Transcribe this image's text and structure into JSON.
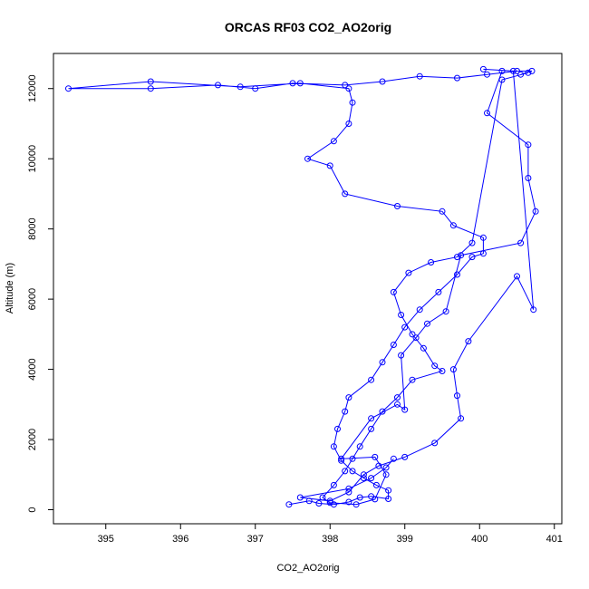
{
  "chart_data": {
    "type": "line",
    "title": "ORCAS RF03 CO2_AO2orig",
    "xlabel": "CO2_AO2orig",
    "ylabel": "Altitude (m)",
    "xlim": [
      394.3,
      401.1
    ],
    "ylim": [
      -400,
      13000
    ],
    "xticks": [
      "395",
      "396",
      "397",
      "398",
      "399",
      "400",
      "401"
    ],
    "yticks": [
      "0",
      "2000",
      "4000",
      "6000",
      "8000",
      "10000",
      "12000"
    ],
    "grid": false,
    "legend": "none",
    "colors": {
      "series": "#0000ff",
      "frame": "#000000"
    },
    "series": [
      {
        "points": [
          [
            397.45,
            150
          ],
          [
            397.72,
            250
          ],
          [
            397.85,
            180
          ],
          [
            398.05,
            150
          ],
          [
            398.25,
            220
          ],
          [
            398.4,
            350
          ],
          [
            398.55,
            380
          ],
          [
            398.78,
            310
          ],
          [
            398.78,
            550
          ],
          [
            398.62,
            700
          ],
          [
            398.45,
            900
          ],
          [
            398.3,
            1100
          ],
          [
            398.15,
            1400
          ],
          [
            398.05,
            1800
          ],
          [
            398.1,
            2300
          ],
          [
            398.2,
            2800
          ],
          [
            398.25,
            3200
          ],
          [
            398.55,
            3700
          ],
          [
            398.7,
            4200
          ],
          [
            398.85,
            4700
          ],
          [
            399.0,
            5200
          ],
          [
            399.2,
            5700
          ],
          [
            399.45,
            6200
          ],
          [
            399.7,
            6700
          ],
          [
            399.9,
            7200
          ],
          [
            400.05,
            7300
          ],
          [
            400.05,
            7750
          ],
          [
            399.65,
            8100
          ],
          [
            399.5,
            8500
          ],
          [
            398.9,
            8650
          ],
          [
            398.2,
            9000
          ],
          [
            398.0,
            9800
          ],
          [
            397.7,
            10000
          ],
          [
            398.05,
            10500
          ],
          [
            398.25,
            11000
          ],
          [
            398.3,
            11600
          ],
          [
            398.25,
            12000
          ],
          [
            397.6,
            12150
          ],
          [
            396.8,
            12050
          ],
          [
            395.6,
            12200
          ],
          [
            394.5,
            12000
          ],
          [
            395.6,
            12000
          ],
          [
            396.5,
            12100
          ],
          [
            397.0,
            12000
          ],
          [
            397.5,
            12150
          ],
          [
            398.2,
            12100
          ],
          [
            398.7,
            12200
          ],
          [
            399.2,
            12350
          ],
          [
            399.7,
            12300
          ],
          [
            400.1,
            12400
          ],
          [
            400.5,
            12500
          ],
          [
            400.7,
            12500
          ],
          [
            400.55,
            12400
          ]
        ]
      },
      {
        "points": [
          [
            400.65,
            12450
          ],
          [
            400.3,
            12250
          ],
          [
            399.9,
            7600
          ],
          [
            399.7,
            7200
          ],
          [
            399.35,
            7050
          ],
          [
            399.05,
            6750
          ],
          [
            398.85,
            6200
          ],
          [
            398.95,
            5550
          ],
          [
            399.1,
            5000
          ],
          [
            399.25,
            4600
          ],
          [
            399.4,
            4100
          ],
          [
            399.5,
            3950
          ],
          [
            399.1,
            3700
          ],
          [
            398.9,
            3200
          ],
          [
            398.7,
            2800
          ],
          [
            398.55,
            2300
          ],
          [
            398.4,
            1800
          ],
          [
            398.3,
            1450
          ],
          [
            398.2,
            1100
          ],
          [
            398.05,
            700
          ],
          [
            397.9,
            350
          ],
          [
            398.0,
            200
          ],
          [
            398.35,
            150
          ],
          [
            398.6,
            300
          ],
          [
            398.75,
            1000
          ],
          [
            398.6,
            1500
          ],
          [
            398.15,
            1450
          ],
          [
            398.55,
            2600
          ],
          [
            398.9,
            3000
          ],
          [
            399.0,
            2850
          ],
          [
            398.95,
            4400
          ],
          [
            399.15,
            4900
          ],
          [
            399.3,
            5300
          ],
          [
            399.55,
            5650
          ],
          [
            399.75,
            7250
          ],
          [
            400.55,
            7600
          ],
          [
            400.75,
            8500
          ],
          [
            400.65,
            9450
          ],
          [
            400.65,
            10400
          ],
          [
            400.1,
            11300
          ],
          [
            400.3,
            12500
          ]
        ]
      },
      {
        "points": [
          [
            400.05,
            12550
          ],
          [
            400.45,
            12500
          ],
          [
            400.72,
            5700
          ],
          [
            400.5,
            6650
          ],
          [
            399.85,
            4800
          ],
          [
            399.65,
            4000
          ],
          [
            399.7,
            3250
          ],
          [
            399.75,
            2600
          ],
          [
            399.4,
            1900
          ],
          [
            399.0,
            1500
          ],
          [
            398.65,
            1250
          ],
          [
            398.45,
            1000
          ],
          [
            398.25,
            500
          ],
          [
            398.0,
            250
          ],
          [
            397.6,
            350
          ],
          [
            398.25,
            600
          ],
          [
            398.55,
            900
          ],
          [
            398.75,
            1200
          ],
          [
            398.85,
            1450
          ]
        ]
      }
    ]
  }
}
